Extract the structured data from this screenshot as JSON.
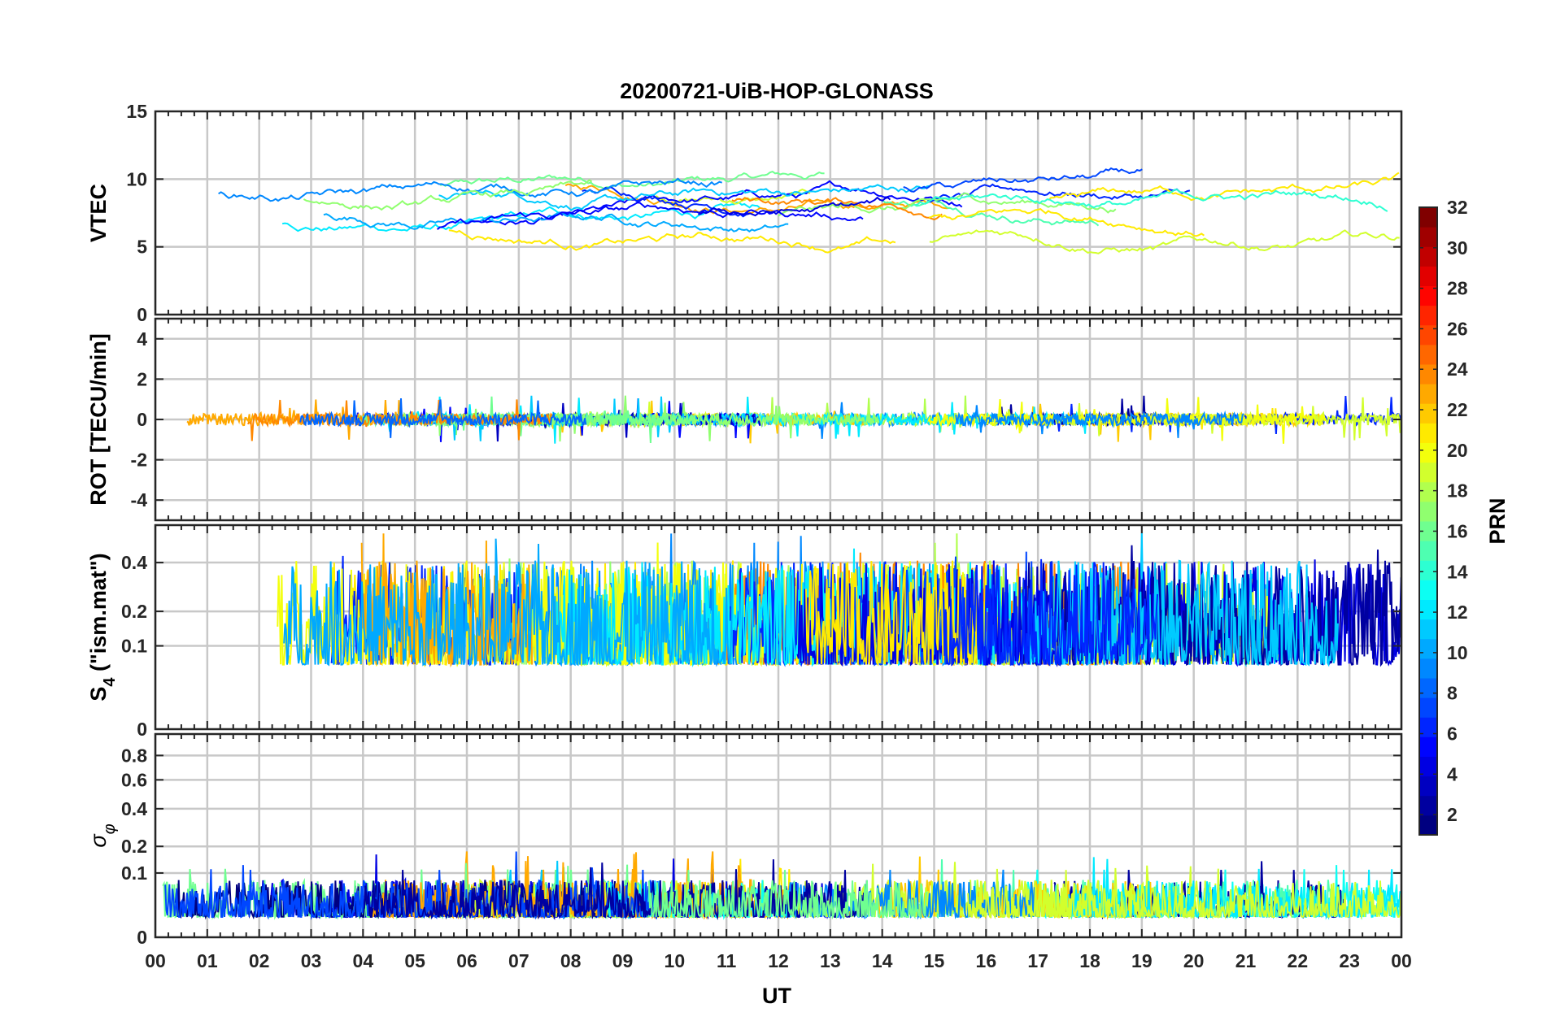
{
  "chart_data": {
    "type": "line",
    "title": "20200721-UiB-HOP-GLONASS",
    "xlabel": "UT",
    "x_ticks": [
      "00",
      "01",
      "02",
      "03",
      "04",
      "05",
      "06",
      "07",
      "08",
      "09",
      "10",
      "11",
      "12",
      "13",
      "14",
      "15",
      "16",
      "17",
      "18",
      "19",
      "20",
      "21",
      "22",
      "23",
      "00"
    ],
    "xlim_hours": [
      0,
      24
    ],
    "grid": true,
    "colorbar": {
      "label": "PRN",
      "range": [
        1,
        32
      ],
      "ticks": [
        "2",
        "4",
        "6",
        "8",
        "10",
        "12",
        "14",
        "16",
        "18",
        "20",
        "22",
        "24",
        "26",
        "28",
        "30",
        "32"
      ],
      "colormap": "jet"
    },
    "panels": [
      {
        "name": "vtec",
        "ylabel": "VTEC",
        "ylim": [
          0,
          15
        ],
        "y_ticks": [
          "0",
          "5",
          "10",
          "15"
        ],
        "typical_range": [
          4,
          11
        ],
        "description_values": {
          "mean_level": 7.5
        }
      },
      {
        "name": "rot",
        "ylabel": "ROT [TECU/min]",
        "ylim": [
          -5,
          5
        ],
        "y_ticks": [
          "-4",
          "-2",
          "0",
          "2",
          "4"
        ],
        "typical_range": [
          -2,
          2.5
        ]
      },
      {
        "name": "s4",
        "ylabel_main": "S",
        "ylabel_sub": "4",
        "ylabel_tail": " (\"ism.mat\")",
        "ylim": [
          0,
          0.6
        ],
        "scale": "sqrt",
        "y_ticks": [
          "0",
          "0.1",
          "0.2",
          "0.4"
        ],
        "typical_range": [
          0.05,
          0.6
        ]
      },
      {
        "name": "sigma-phi",
        "ylabel_main": "σ",
        "ylabel_sub": "φ",
        "ylim": [
          0,
          1
        ],
        "scale": "sqrt",
        "y_ticks": [
          "0",
          "0.1",
          "0.2",
          "0.4",
          "0.6",
          "0.8"
        ],
        "typical_range": [
          0.02,
          0.28
        ]
      }
    ]
  },
  "colors": {
    "frame": "#262626",
    "grid": "#c8c8c8",
    "background": "#ffffff"
  }
}
